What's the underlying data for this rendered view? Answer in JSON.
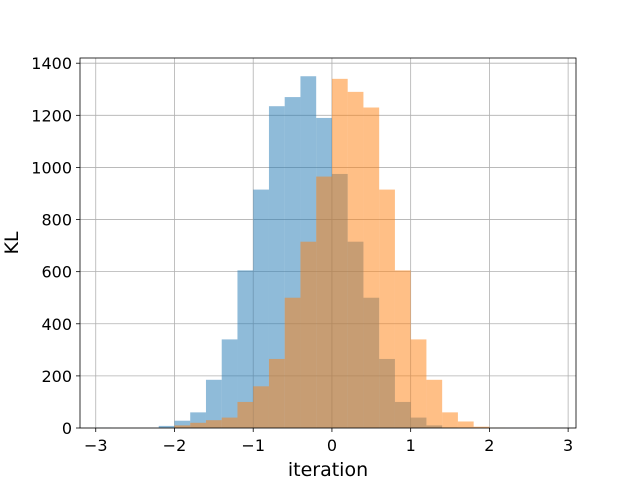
{
  "chart_data": {
    "type": "bar",
    "subtype": "overlaid-histogram",
    "xlabel": "iteration",
    "ylabel": "KL",
    "xlim": [
      -3.2,
      3.1
    ],
    "ylim": [
      0,
      1420
    ],
    "xticks": [
      -3,
      -2,
      -1,
      0,
      1,
      2,
      3
    ],
    "xtick_labels": [
      "−3",
      "−2",
      "−1",
      "0",
      "1",
      "2",
      "3"
    ],
    "yticks": [
      0,
      200,
      400,
      600,
      800,
      1000,
      1200,
      1400
    ],
    "ytick_labels": [
      "0",
      "200",
      "400",
      "600",
      "800",
      "1000",
      "1200",
      "1400"
    ],
    "grid": true,
    "bin_width": 0.2,
    "series": [
      {
        "color": "#1f77b4",
        "opacity": 0.5,
        "bins": [
          [
            -3.0,
            1
          ],
          [
            -2.2,
            8
          ],
          [
            -2.0,
            28
          ],
          [
            -1.8,
            60
          ],
          [
            -1.6,
            185
          ],
          [
            -1.4,
            340
          ],
          [
            -1.2,
            605
          ],
          [
            -1.0,
            915
          ],
          [
            -0.8,
            1235
          ],
          [
            -0.6,
            1270
          ],
          [
            -0.4,
            1350
          ],
          [
            -0.2,
            1190
          ],
          [
            0.0,
            975
          ],
          [
            0.2,
            715
          ],
          [
            0.4,
            500
          ],
          [
            0.6,
            265
          ],
          [
            0.8,
            100
          ],
          [
            1.0,
            40
          ],
          [
            1.2,
            10
          ],
          [
            1.4,
            2
          ]
        ]
      },
      {
        "color": "#ff7f0e",
        "opacity": 0.5,
        "bins": [
          [
            -2.0,
            10
          ],
          [
            -1.8,
            20
          ],
          [
            -1.6,
            30
          ],
          [
            -1.4,
            40
          ],
          [
            -1.2,
            100
          ],
          [
            -1.0,
            160
          ],
          [
            -0.8,
            265
          ],
          [
            -0.6,
            500
          ],
          [
            -0.4,
            715
          ],
          [
            -0.2,
            965
          ],
          [
            0.0,
            1340
          ],
          [
            0.2,
            1290
          ],
          [
            0.4,
            1230
          ],
          [
            0.6,
            915
          ],
          [
            0.8,
            605
          ],
          [
            1.0,
            340
          ],
          [
            1.2,
            185
          ],
          [
            1.4,
            60
          ],
          [
            1.6,
            25
          ],
          [
            1.8,
            5
          ],
          [
            2.0,
            1
          ],
          [
            2.6,
            1
          ]
        ]
      }
    ]
  }
}
